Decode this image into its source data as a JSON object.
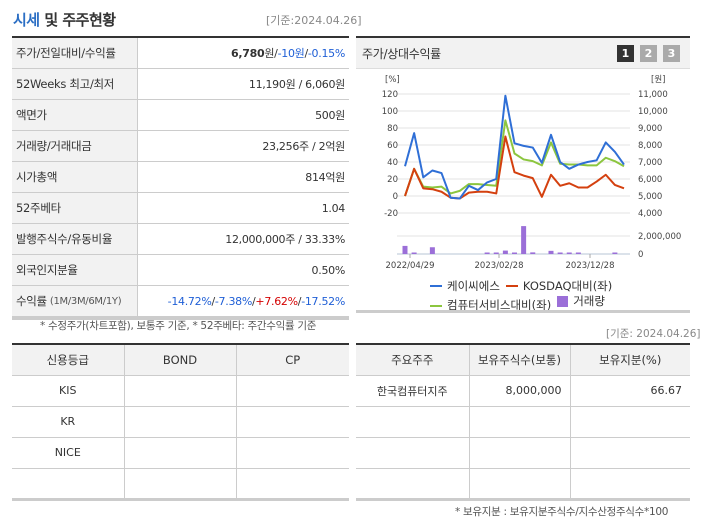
{
  "header": {
    "title_accent": "시세",
    "title_rest": " 및 주주현황",
    "date": "[기준:2024.04.26]"
  },
  "price_table": {
    "rows": [
      {
        "label": "주가/전일대비/수익률",
        "price": "6,780",
        "unit": "원",
        "sep1": " / ",
        "change": "-10원",
        "sep2": " / ",
        "rate": "-0.15%"
      },
      {
        "label": "52Weeks 최고/최저",
        "value": "11,190원 / 6,060원"
      },
      {
        "label": "액면가",
        "value": "500원"
      },
      {
        "label": "거래량/거래대금",
        "value": "23,256주 / 2억원"
      },
      {
        "label": "시가총액",
        "value": "814억원"
      },
      {
        "label": "52주베타",
        "value": "1.04"
      },
      {
        "label": "발행주식수/유동비율",
        "value": "12,000,000주 / 33.33%"
      },
      {
        "label": "외국인지분율",
        "value": "0.50%"
      },
      {
        "label": "수익률",
        "label_sub": "(1M/3M/6M/1Y)",
        "r1": "-14.72%",
        "r2": "-7.38%",
        "r3": "+7.62%",
        "r4": "-17.52%",
        "sep": "/ "
      }
    ],
    "note": "* 수정주가(차트포함), 보통주 기준, * 52주베타: 주간수익률 기준"
  },
  "chart_panel": {
    "title": "주가/상대수익률",
    "tabs": [
      "1",
      "2",
      "3"
    ],
    "active_tab": 0
  },
  "chart_data": {
    "type": "line",
    "title": "주가/상대수익률",
    "ylabel_left": "[%]",
    "ylabel_right": "[원]",
    "y_left_ticks": [
      "120",
      "100",
      "80",
      "60",
      "40",
      "20",
      "0",
      "-20"
    ],
    "y_right_ticks": [
      "11,000",
      "10,000",
      "9,000",
      "8,000",
      "7,000",
      "6,000",
      "5,000",
      "4,000"
    ],
    "volume_ticks": [
      "2,000,000",
      "0"
    ],
    "x_ticks": [
      "2022/04/29",
      "2023/02/28",
      "2023/12/28"
    ],
    "ylim_left": [
      -20,
      120
    ],
    "ylim_right": [
      4000,
      11000
    ],
    "series": [
      {
        "name": "케이씨에스",
        "color": "#2f6fd6",
        "values": [
          35,
          74,
          22,
          30,
          27,
          -2,
          -3,
          12,
          7,
          16,
          20,
          118,
          62,
          59,
          57,
          39,
          72,
          40,
          32,
          37,
          40,
          42,
          63,
          52,
          37
        ]
      },
      {
        "name": "KOSDAQ대비(좌)",
        "color": "#d4400f",
        "values": [
          0,
          32,
          9,
          8,
          5,
          -2,
          -3,
          4,
          5,
          5,
          3,
          70,
          28,
          24,
          21,
          -1,
          25,
          12,
          15,
          10,
          10,
          17,
          25,
          13,
          9
        ]
      },
      {
        "name": "컴퓨터서비스대비(좌)",
        "color": "#8cc63f",
        "values": [
          0,
          32,
          11,
          10,
          11,
          3,
          6,
          14,
          14,
          13,
          12,
          89,
          50,
          43,
          41,
          36,
          63,
          38,
          37,
          37,
          36,
          36,
          45,
          41,
          35
        ]
      },
      {
        "name": "거래량",
        "color": "#9b6fd8",
        "type": "bar",
        "values": [
          900000,
          100000,
          0,
          750000,
          0,
          0,
          0,
          0,
          0,
          50000,
          50000,
          380000,
          50000,
          3100000,
          180000,
          0,
          350000,
          50000,
          50000,
          50000,
          0,
          0,
          0,
          50000,
          0
        ]
      }
    ],
    "legend": [
      "케이씨에스",
      "KOSDAQ대비(좌)",
      "컴퓨터서비스대비(좌)",
      "거래량"
    ]
  },
  "holders": {
    "date": "[기준: 2024.04.26]",
    "headers": [
      "주요주주",
      "보유주식수(보통)",
      "보유지분(%)"
    ],
    "rows": [
      {
        "name": "한국컴퓨터지주",
        "shares": "8,000,000",
        "pct": "66.67"
      },
      {
        "name": "",
        "shares": "",
        "pct": ""
      },
      {
        "name": "",
        "shares": "",
        "pct": ""
      },
      {
        "name": "",
        "shares": "",
        "pct": ""
      }
    ],
    "note": "* 보유지분 : 보유지분주식수/지수산정주식수*100"
  },
  "credit": {
    "headers": [
      "신용등급",
      "BOND",
      "CP"
    ],
    "rows": [
      {
        "agency": "KIS",
        "bond": "",
        "cp": ""
      },
      {
        "agency": "KR",
        "bond": "",
        "cp": ""
      },
      {
        "agency": "NICE",
        "bond": "",
        "cp": ""
      },
      {
        "agency": "",
        "bond": "",
        "cp": ""
      }
    ]
  }
}
